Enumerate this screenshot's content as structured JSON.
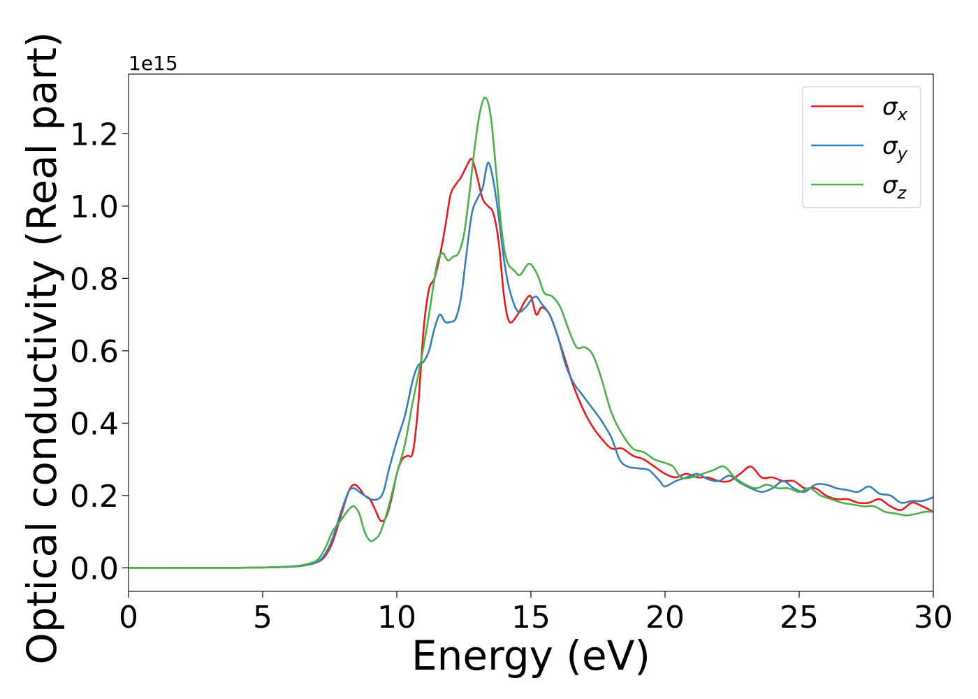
{
  "chart_data": {
    "type": "line",
    "title": "",
    "xlabel": "Energy (eV)",
    "ylabel": "Optical conductivity (Real part)",
    "y_offset_label": "1e15",
    "xlim": [
      0,
      30
    ],
    "ylim": [
      -0.065,
      1.365
    ],
    "x_ticks": [
      0,
      5,
      10,
      15,
      20,
      25,
      30
    ],
    "x_tick_labels": [
      "0",
      "5",
      "10",
      "15",
      "20",
      "25",
      "30"
    ],
    "y_ticks": [
      0.0,
      0.2,
      0.4,
      0.6,
      0.8,
      1.0,
      1.2
    ],
    "y_tick_labels": [
      "0.0",
      "0.2",
      "0.4",
      "0.6",
      "0.8",
      "1.0",
      "1.2"
    ],
    "grid": false,
    "legend_position": "top-right",
    "series": [
      {
        "name": "σx",
        "legend_base": "σ",
        "legend_sub": "x",
        "color": "#e41a1c",
        "points": [
          [
            0,
            0.0
          ],
          [
            2,
            0.0
          ],
          [
            4,
            0.0
          ],
          [
            5,
            0.001
          ],
          [
            6,
            0.003
          ],
          [
            6.5,
            0.006
          ],
          [
            7,
            0.015
          ],
          [
            7.3,
            0.03
          ],
          [
            7.6,
            0.07
          ],
          [
            7.9,
            0.14
          ],
          [
            8.2,
            0.21
          ],
          [
            8.4,
            0.23
          ],
          [
            8.6,
            0.22
          ],
          [
            8.8,
            0.2
          ],
          [
            9.0,
            0.19
          ],
          [
            9.2,
            0.16
          ],
          [
            9.4,
            0.13
          ],
          [
            9.6,
            0.14
          ],
          [
            9.8,
            0.19
          ],
          [
            10.0,
            0.26
          ],
          [
            10.2,
            0.3
          ],
          [
            10.4,
            0.31
          ],
          [
            10.6,
            0.32
          ],
          [
            10.8,
            0.45
          ],
          [
            11.0,
            0.66
          ],
          [
            11.2,
            0.77
          ],
          [
            11.4,
            0.8
          ],
          [
            11.6,
            0.86
          ],
          [
            11.8,
            0.94
          ],
          [
            12.0,
            1.03
          ],
          [
            12.2,
            1.06
          ],
          [
            12.4,
            1.08
          ],
          [
            12.6,
            1.11
          ],
          [
            12.8,
            1.13
          ],
          [
            13.0,
            1.08
          ],
          [
            13.2,
            1.02
          ],
          [
            13.4,
            1.0
          ],
          [
            13.6,
            0.98
          ],
          [
            13.8,
            0.9
          ],
          [
            14.0,
            0.75
          ],
          [
            14.2,
            0.68
          ],
          [
            14.5,
            0.7
          ],
          [
            14.8,
            0.74
          ],
          [
            15.0,
            0.75
          ],
          [
            15.2,
            0.7
          ],
          [
            15.4,
            0.72
          ],
          [
            15.7,
            0.7
          ],
          [
            16.0,
            0.64
          ],
          [
            16.3,
            0.57
          ],
          [
            16.6,
            0.5
          ],
          [
            17.0,
            0.43
          ],
          [
            17.3,
            0.39
          ],
          [
            17.6,
            0.36
          ],
          [
            18.0,
            0.33
          ],
          [
            18.4,
            0.33
          ],
          [
            18.8,
            0.31
          ],
          [
            19.2,
            0.3
          ],
          [
            19.6,
            0.28
          ],
          [
            20.0,
            0.26
          ],
          [
            20.4,
            0.25
          ],
          [
            20.8,
            0.26
          ],
          [
            21.2,
            0.25
          ],
          [
            21.6,
            0.25
          ],
          [
            22.0,
            0.24
          ],
          [
            22.4,
            0.24
          ],
          [
            22.8,
            0.26
          ],
          [
            23.2,
            0.28
          ],
          [
            23.6,
            0.25
          ],
          [
            24.0,
            0.25
          ],
          [
            24.4,
            0.24
          ],
          [
            24.8,
            0.24
          ],
          [
            25.2,
            0.22
          ],
          [
            25.6,
            0.22
          ],
          [
            26.0,
            0.2
          ],
          [
            26.4,
            0.19
          ],
          [
            26.8,
            0.19
          ],
          [
            27.2,
            0.18
          ],
          [
            27.6,
            0.18
          ],
          [
            28.0,
            0.19
          ],
          [
            28.4,
            0.17
          ],
          [
            28.8,
            0.16
          ],
          [
            29.2,
            0.18
          ],
          [
            29.6,
            0.17
          ],
          [
            30.0,
            0.155
          ]
        ]
      },
      {
        "name": "σy",
        "legend_base": "σ",
        "legend_sub": "y",
        "color": "#377eb8",
        "points": [
          [
            0,
            0.0
          ],
          [
            2,
            0.0
          ],
          [
            4,
            0.0
          ],
          [
            5,
            0.001
          ],
          [
            6,
            0.003
          ],
          [
            6.5,
            0.006
          ],
          [
            7,
            0.015
          ],
          [
            7.3,
            0.035
          ],
          [
            7.6,
            0.08
          ],
          [
            7.9,
            0.15
          ],
          [
            8.2,
            0.21
          ],
          [
            8.4,
            0.22
          ],
          [
            8.6,
            0.21
          ],
          [
            8.8,
            0.2
          ],
          [
            9.0,
            0.19
          ],
          [
            9.3,
            0.19
          ],
          [
            9.5,
            0.21
          ],
          [
            9.7,
            0.27
          ],
          [
            10.0,
            0.35
          ],
          [
            10.3,
            0.42
          ],
          [
            10.6,
            0.52
          ],
          [
            10.8,
            0.56
          ],
          [
            11.0,
            0.57
          ],
          [
            11.2,
            0.6
          ],
          [
            11.4,
            0.66
          ],
          [
            11.6,
            0.7
          ],
          [
            11.8,
            0.68
          ],
          [
            12.0,
            0.68
          ],
          [
            12.2,
            0.69
          ],
          [
            12.4,
            0.75
          ],
          [
            12.6,
            0.87
          ],
          [
            12.8,
            0.98
          ],
          [
            13.0,
            1.02
          ],
          [
            13.2,
            1.05
          ],
          [
            13.4,
            1.12
          ],
          [
            13.6,
            1.07
          ],
          [
            13.8,
            0.97
          ],
          [
            14.0,
            0.85
          ],
          [
            14.2,
            0.77
          ],
          [
            14.5,
            0.71
          ],
          [
            14.8,
            0.72
          ],
          [
            15.0,
            0.74
          ],
          [
            15.2,
            0.75
          ],
          [
            15.4,
            0.73
          ],
          [
            15.7,
            0.7
          ],
          [
            16.0,
            0.64
          ],
          [
            16.3,
            0.56
          ],
          [
            16.6,
            0.51
          ],
          [
            16.9,
            0.48
          ],
          [
            17.2,
            0.45
          ],
          [
            17.6,
            0.41
          ],
          [
            18.0,
            0.36
          ],
          [
            18.3,
            0.3
          ],
          [
            18.6,
            0.28
          ],
          [
            19.0,
            0.275
          ],
          [
            19.4,
            0.27
          ],
          [
            19.8,
            0.24
          ],
          [
            20.0,
            0.225
          ],
          [
            20.4,
            0.24
          ],
          [
            20.8,
            0.25
          ],
          [
            21.2,
            0.26
          ],
          [
            21.6,
            0.245
          ],
          [
            22.0,
            0.24
          ],
          [
            22.4,
            0.255
          ],
          [
            22.8,
            0.235
          ],
          [
            23.2,
            0.22
          ],
          [
            23.6,
            0.21
          ],
          [
            24.0,
            0.22
          ],
          [
            24.4,
            0.24
          ],
          [
            24.8,
            0.22
          ],
          [
            25.2,
            0.21
          ],
          [
            25.6,
            0.23
          ],
          [
            26.0,
            0.23
          ],
          [
            26.4,
            0.22
          ],
          [
            26.8,
            0.215
          ],
          [
            27.2,
            0.21
          ],
          [
            27.6,
            0.225
          ],
          [
            28.0,
            0.205
          ],
          [
            28.4,
            0.2
          ],
          [
            28.8,
            0.18
          ],
          [
            29.2,
            0.185
          ],
          [
            29.6,
            0.185
          ],
          [
            30.0,
            0.195
          ]
        ]
      },
      {
        "name": "σz",
        "legend_base": "σ",
        "legend_sub": "z",
        "color": "#4daf4a",
        "points": [
          [
            0,
            0.0
          ],
          [
            2,
            0.0
          ],
          [
            4,
            0.0
          ],
          [
            5,
            0.001
          ],
          [
            6,
            0.004
          ],
          [
            6.5,
            0.008
          ],
          [
            7,
            0.02
          ],
          [
            7.3,
            0.05
          ],
          [
            7.6,
            0.1
          ],
          [
            7.9,
            0.13
          ],
          [
            8.2,
            0.16
          ],
          [
            8.4,
            0.17
          ],
          [
            8.6,
            0.15
          ],
          [
            8.8,
            0.1
          ],
          [
            9.0,
            0.075
          ],
          [
            9.2,
            0.08
          ],
          [
            9.4,
            0.1
          ],
          [
            9.7,
            0.17
          ],
          [
            10.0,
            0.26
          ],
          [
            10.3,
            0.34
          ],
          [
            10.6,
            0.46
          ],
          [
            10.9,
            0.57
          ],
          [
            11.2,
            0.7
          ],
          [
            11.5,
            0.84
          ],
          [
            11.7,
            0.87
          ],
          [
            11.9,
            0.85
          ],
          [
            12.1,
            0.86
          ],
          [
            12.3,
            0.87
          ],
          [
            12.5,
            0.92
          ],
          [
            12.7,
            1.03
          ],
          [
            12.9,
            1.16
          ],
          [
            13.1,
            1.26
          ],
          [
            13.3,
            1.3
          ],
          [
            13.5,
            1.25
          ],
          [
            13.7,
            1.1
          ],
          [
            13.9,
            0.94
          ],
          [
            14.1,
            0.85
          ],
          [
            14.4,
            0.82
          ],
          [
            14.6,
            0.81
          ],
          [
            14.9,
            0.84
          ],
          [
            15.1,
            0.83
          ],
          [
            15.3,
            0.8
          ],
          [
            15.5,
            0.76
          ],
          [
            15.8,
            0.75
          ],
          [
            16.1,
            0.72
          ],
          [
            16.4,
            0.66
          ],
          [
            16.7,
            0.61
          ],
          [
            17.0,
            0.61
          ],
          [
            17.3,
            0.59
          ],
          [
            17.6,
            0.53
          ],
          [
            18.0,
            0.43
          ],
          [
            18.4,
            0.37
          ],
          [
            18.8,
            0.33
          ],
          [
            19.2,
            0.32
          ],
          [
            19.6,
            0.3
          ],
          [
            20.0,
            0.29
          ],
          [
            20.3,
            0.28
          ],
          [
            20.6,
            0.25
          ],
          [
            21.0,
            0.25
          ],
          [
            21.4,
            0.26
          ],
          [
            21.8,
            0.27
          ],
          [
            22.2,
            0.28
          ],
          [
            22.6,
            0.25
          ],
          [
            23.0,
            0.23
          ],
          [
            23.4,
            0.22
          ],
          [
            23.8,
            0.23
          ],
          [
            24.2,
            0.22
          ],
          [
            24.6,
            0.22
          ],
          [
            25.0,
            0.21
          ],
          [
            25.4,
            0.22
          ],
          [
            25.8,
            0.2
          ],
          [
            26.2,
            0.19
          ],
          [
            26.6,
            0.18
          ],
          [
            27.0,
            0.175
          ],
          [
            27.4,
            0.17
          ],
          [
            27.8,
            0.17
          ],
          [
            28.2,
            0.155
          ],
          [
            28.6,
            0.15
          ],
          [
            29.0,
            0.145
          ],
          [
            29.4,
            0.15
          ],
          [
            29.7,
            0.155
          ],
          [
            30.0,
            0.155
          ]
        ]
      }
    ]
  }
}
